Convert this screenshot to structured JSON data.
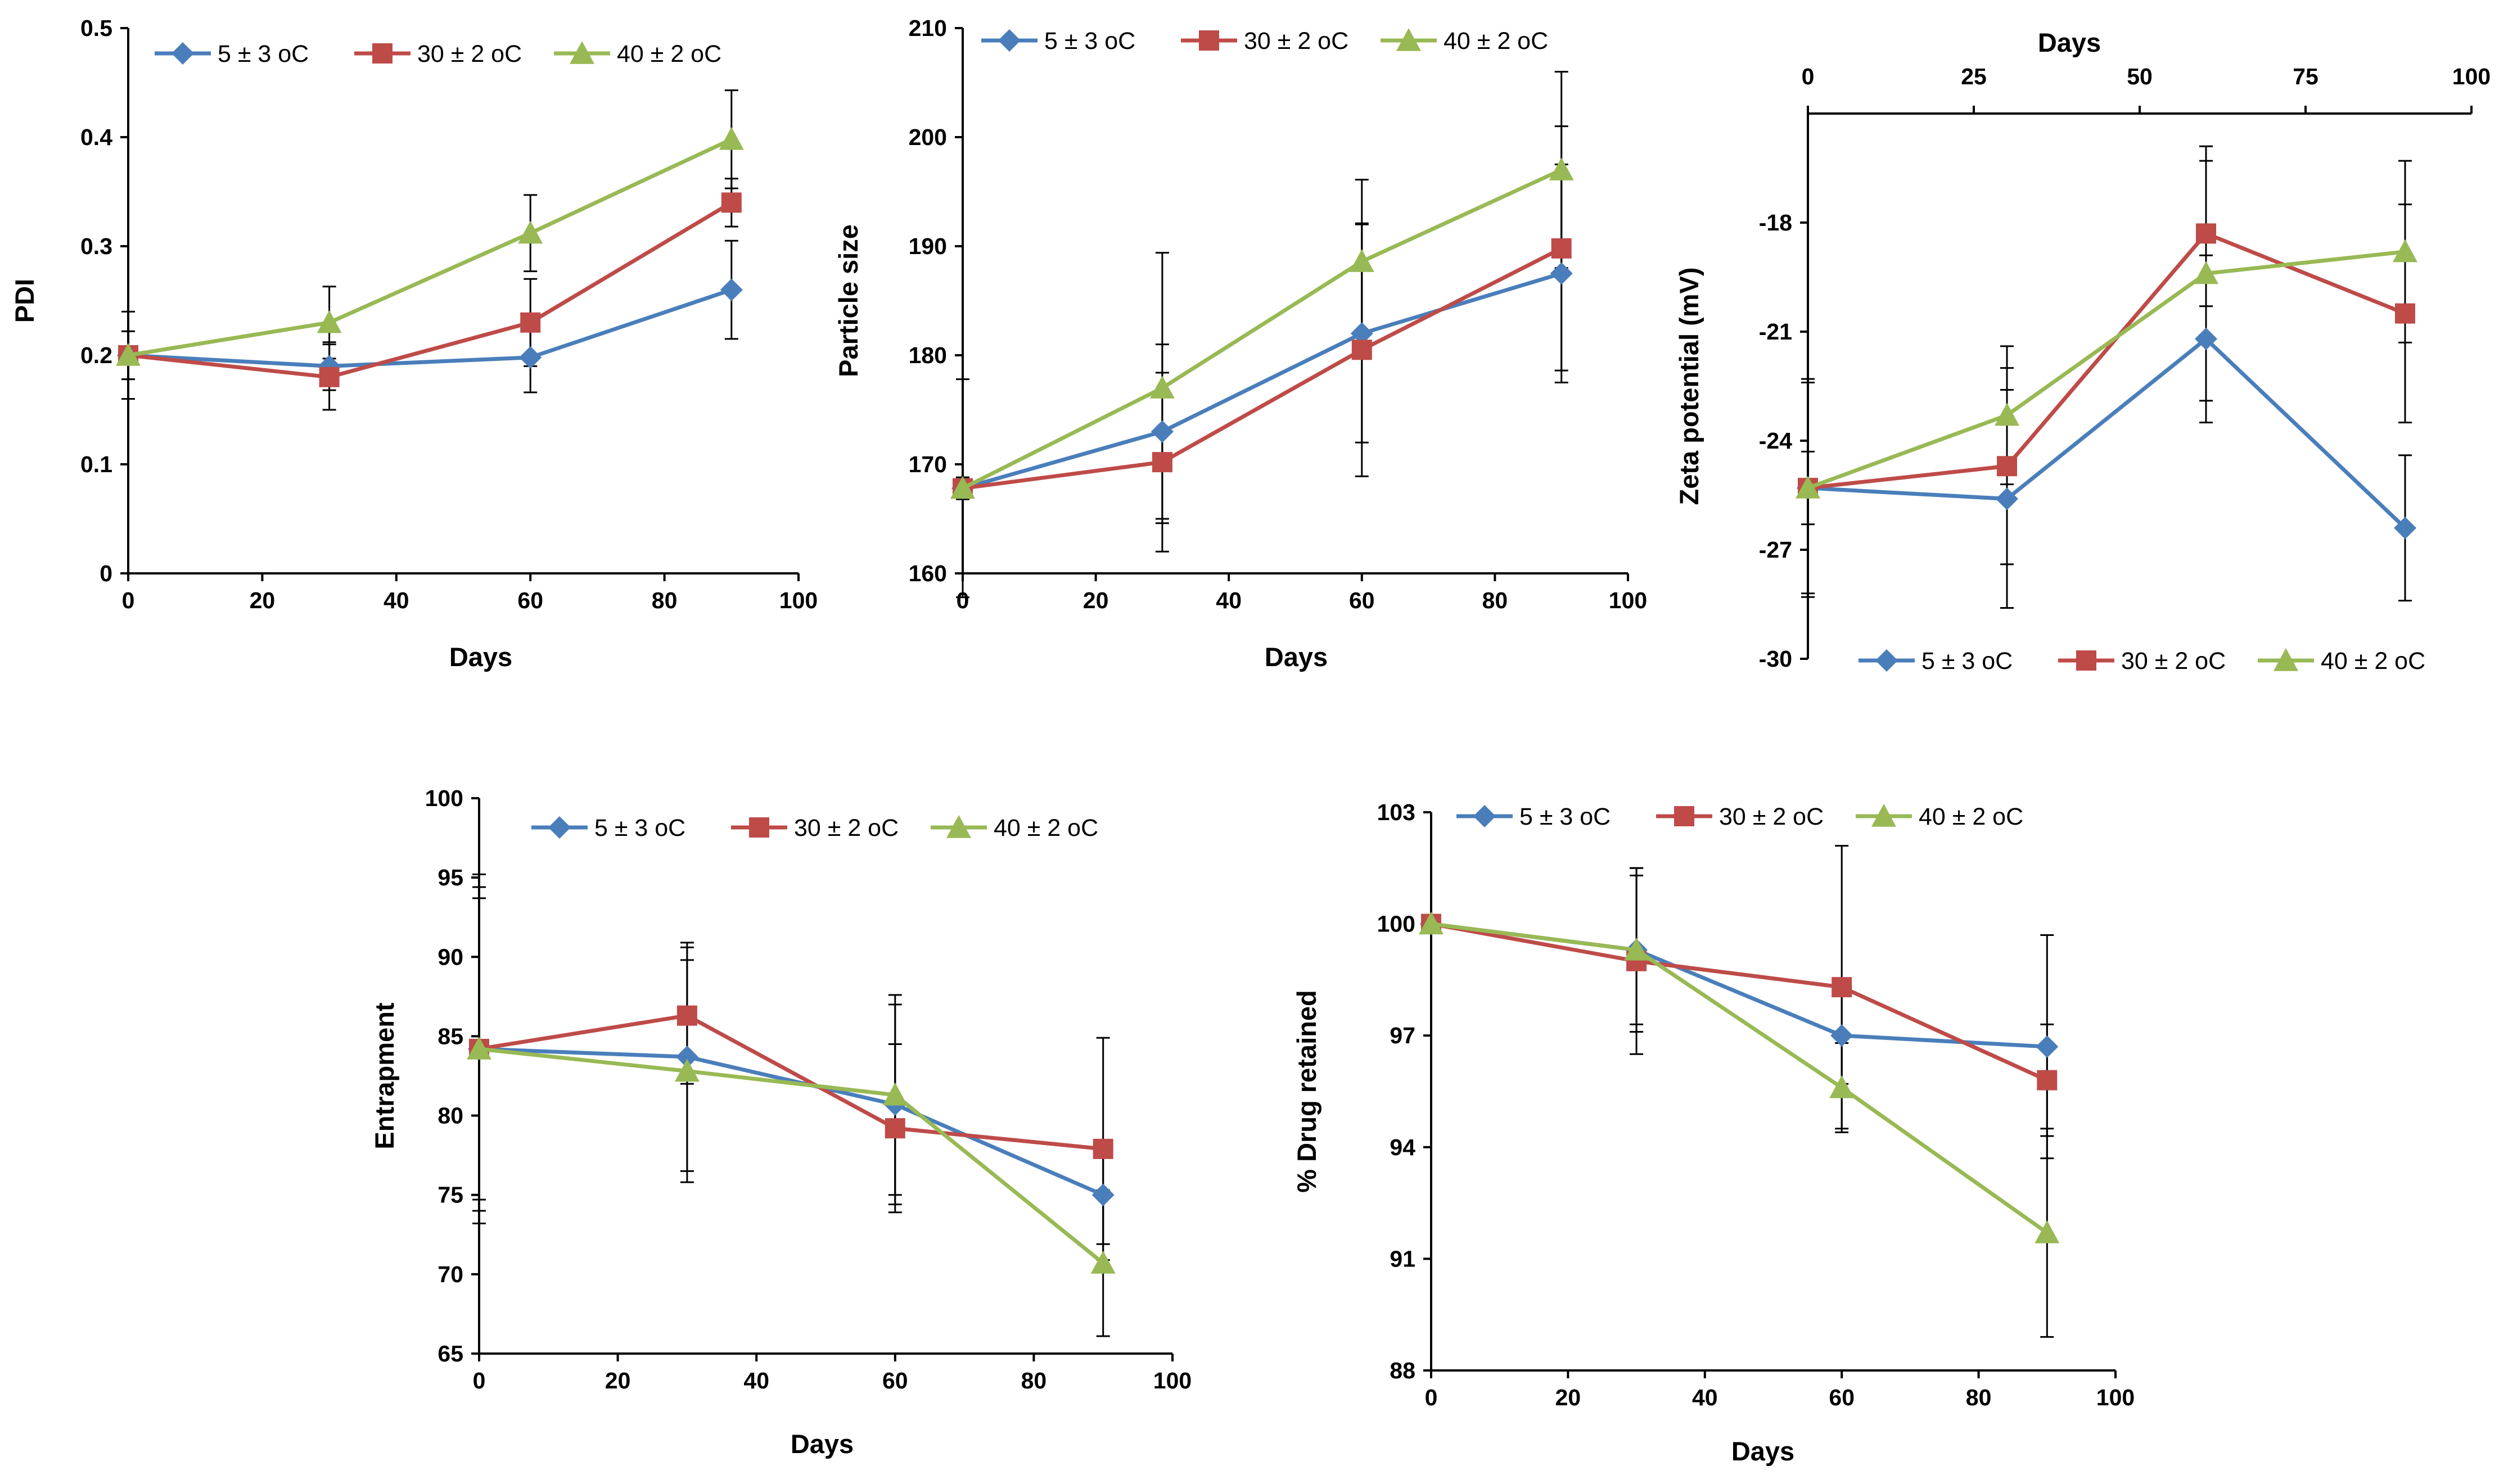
{
  "legend_labels": [
    "5 ± 3 oC",
    "30 ± 2 oC",
    "40 ± 2 oC"
  ],
  "colors": {
    "series_5C": "#4a7ebb",
    "series_30C": "#be4b48",
    "series_40C": "#98b954",
    "axis": "#000000",
    "error_bar": "#000000"
  },
  "chart_data": [
    {
      "id": "pdi",
      "type": "line",
      "title": "",
      "xlabel": "Days",
      "ylabel": "PDI",
      "xlim": [
        0,
        100
      ],
      "ylim": [
        0,
        0.5
      ],
      "xticks": [
        0,
        20,
        40,
        60,
        80,
        100
      ],
      "yticks": [
        0,
        0.1,
        0.2,
        0.3,
        0.4,
        0.5
      ],
      "xtick_labels": [
        "0",
        "20",
        "40",
        "60",
        "80",
        "100"
      ],
      "ytick_labels": [
        "0",
        "0.1",
        "0.2",
        "0.3",
        "0.4",
        "0.5"
      ],
      "x_axis_position": "bottom",
      "legend": "top",
      "x": [
        0,
        30,
        60,
        90
      ],
      "series": [
        {
          "name": "5 ± 3 oC",
          "marker": "diamond",
          "values": [
            0.2,
            0.19,
            0.198,
            0.26
          ],
          "errors": [
            0.04,
            0.022,
            0.032,
            0.045
          ]
        },
        {
          "name": "30 ± 2 oC",
          "marker": "square",
          "values": [
            0.2,
            0.18,
            0.23,
            0.34
          ],
          "errors": [
            0.022,
            0.03,
            0.04,
            0.022
          ]
        },
        {
          "name": "40 ± 2 oC",
          "marker": "triangle",
          "values": [
            0.2,
            0.23,
            0.312,
            0.398
          ],
          "errors": [
            0.022,
            0.033,
            0.035,
            0.045
          ]
        }
      ]
    },
    {
      "id": "particle-size",
      "type": "line",
      "title": "",
      "xlabel": "Days",
      "ylabel": "Particle size",
      "xlim": [
        0,
        100
      ],
      "ylim": [
        160,
        210
      ],
      "xticks": [
        0,
        20,
        40,
        60,
        80,
        100
      ],
      "yticks": [
        160,
        170,
        180,
        190,
        200,
        210
      ],
      "xtick_labels": [
        "0",
        "20",
        "40",
        "60",
        "80",
        "100"
      ],
      "ytick_labels": [
        "160",
        "170",
        "180",
        "190",
        "200",
        "210"
      ],
      "x_axis_position": "bottom",
      "legend": "top",
      "x": [
        0,
        30,
        60,
        90
      ],
      "series": [
        {
          "name": "5 ± 3 oC",
          "marker": "diamond",
          "values": [
            167.8,
            173,
            182,
            187.5
          ],
          "errors": [
            10,
            8,
            10,
            10
          ]
        },
        {
          "name": "30 ± 2 oC",
          "marker": "square",
          "values": [
            167.8,
            170.2,
            180.5,
            189.8
          ],
          "errors": [
            1,
            8.2,
            11.6,
            11.2
          ]
        },
        {
          "name": "40 ± 2 oC",
          "marker": "triangle",
          "values": [
            167.8,
            177,
            188.6,
            197
          ],
          "errors": [
            1,
            12.4,
            7.5,
            9
          ]
        }
      ]
    },
    {
      "id": "zeta-potential",
      "type": "line",
      "title": "",
      "xlabel": "Days",
      "ylabel": "Zeta potential (mV)",
      "xlim": [
        0,
        100
      ],
      "ylim": [
        -30,
        -15
      ],
      "xticks": [
        0,
        25,
        50,
        75,
        100
      ],
      "yticks": [
        -30,
        -27,
        -24,
        -21,
        -18
      ],
      "xtick_labels": [
        "0",
        "25",
        "50",
        "75",
        "100"
      ],
      "ytick_labels": [
        "-30",
        "-27",
        "-24",
        "-21",
        "-18"
      ],
      "x_axis_position": "top",
      "legend": "bottom",
      "x": [
        0,
        30,
        60,
        90
      ],
      "series": [
        {
          "name": "5 ± 3 oC",
          "marker": "diamond",
          "values": [
            -25.3,
            -25.6,
            -21.2,
            -26.4
          ],
          "errors": [
            3,
            3,
            2.3,
            2
          ]
        },
        {
          "name": "30 ± 2 oC",
          "marker": "square",
          "values": [
            -25.3,
            -24.7,
            -18.3,
            -20.5
          ],
          "errors": [
            2.9,
            2.7,
            2,
            3
          ]
        },
        {
          "name": "40 ± 2 oC",
          "marker": "triangle",
          "values": [
            -25.3,
            -23.3,
            -19.4,
            -18.8
          ],
          "errors": [
            1,
            1.9,
            3.5,
            2.5
          ]
        }
      ]
    },
    {
      "id": "entrapment",
      "type": "line",
      "title": "",
      "xlabel": "Days",
      "ylabel": "Entrapment",
      "xlim": [
        0,
        100
      ],
      "ylim": [
        65,
        100
      ],
      "xticks": [
        0,
        20,
        40,
        60,
        80,
        100
      ],
      "yticks": [
        65,
        70,
        75,
        80,
        85,
        90,
        95,
        100
      ],
      "xtick_labels": [
        "0",
        "20",
        "40",
        "60",
        "80",
        "100"
      ],
      "ytick_labels": [
        "65",
        "70",
        "75",
        "80",
        "85",
        "90",
        "95",
        "100"
      ],
      "x_axis_position": "bottom",
      "legend": "top",
      "x": [
        0,
        30,
        60,
        90
      ],
      "series": [
        {
          "name": "5 ± 3 oC",
          "marker": "diamond",
          "values": [
            84.2,
            83.7,
            80.7,
            75
          ],
          "errors": [
            11,
            7.2,
            6.3,
            3.1
          ]
        },
        {
          "name": "30 ± 2 oC",
          "marker": "square",
          "values": [
            84.2,
            86.3,
            79.2,
            77.9
          ],
          "errors": [
            9.5,
            4.3,
            5.3,
            7
          ]
        },
        {
          "name": "40 ± 2 oC",
          "marker": "triangle",
          "values": [
            84.2,
            82.8,
            81.3,
            70.7
          ],
          "errors": [
            10.2,
            7,
            6.3,
            4.6
          ]
        }
      ]
    },
    {
      "id": "drug-retained",
      "type": "line",
      "title": "",
      "xlabel": "Days",
      "ylabel": "% Drug retained",
      "xlim": [
        0,
        100
      ],
      "ylim": [
        88,
        103
      ],
      "xticks": [
        0,
        20,
        40,
        60,
        80,
        100
      ],
      "yticks": [
        88,
        91,
        94,
        97,
        100,
        103
      ],
      "xtick_labels": [
        "0",
        "20",
        "40",
        "60",
        "80",
        "100"
      ],
      "ytick_labels": [
        "88",
        "91",
        "94",
        "97",
        "100",
        "103"
      ],
      "x_axis_position": "bottom",
      "legend": "top",
      "x": [
        0,
        30,
        60,
        90
      ],
      "series": [
        {
          "name": "5 ± 3 oC",
          "marker": "diamond",
          "values": [
            100,
            99.3,
            97,
            96.7
          ],
          "errors": [
            0,
            2.2,
            1.3,
            3
          ]
        },
        {
          "name": "30 ± 2 oC",
          "marker": "square",
          "values": [
            100,
            99,
            98.3,
            95.8
          ],
          "errors": [
            0,
            2.5,
            3.8,
            1.5
          ]
        },
        {
          "name": "40 ± 2 oC",
          "marker": "triangle",
          "values": [
            100,
            99.3,
            95.6,
            91.7
          ],
          "errors": [
            0,
            2,
            1.2,
            2.8
          ]
        }
      ]
    }
  ]
}
